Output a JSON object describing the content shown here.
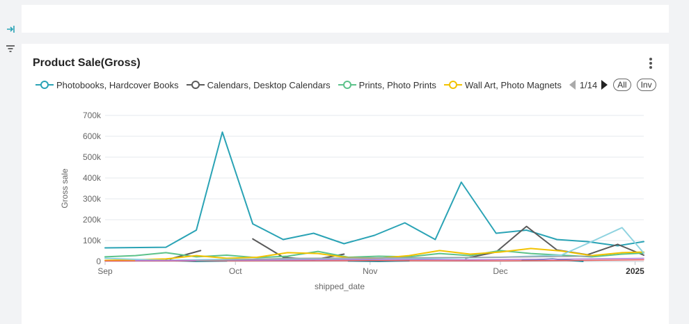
{
  "sidebar": {
    "icons": [
      "collapse-right-icon",
      "filter-icon"
    ]
  },
  "card": {
    "title": "Product Sale(Gross)",
    "more_icon": "more-vertical-icon"
  },
  "legend": {
    "items": [
      {
        "label": "Photobooks, Hardcover Books",
        "color": "#2aa3b5"
      },
      {
        "label": "Calendars, Desktop Calendars",
        "color": "#5a5a5a"
      },
      {
        "label": "Prints, Photo Prints",
        "color": "#5cc28a"
      },
      {
        "label": "Wall Art, Photo Magnets",
        "color": "#f2c200"
      }
    ],
    "page": "1/14",
    "all_label": "All",
    "inv_label": "Inv"
  },
  "chart_data": {
    "type": "line",
    "xlabel": "shipped_date",
    "ylabel": "Gross sale",
    "ylim": [
      0,
      700000
    ],
    "y_ticks": [
      "0",
      "100k",
      "200k",
      "300k",
      "400k",
      "500k",
      "600k",
      "700k"
    ],
    "y_tick_values": [
      0,
      100000,
      200000,
      300000,
      400000,
      500000,
      600000,
      700000
    ],
    "x_ticks": [
      {
        "label": "Sep",
        "date": "2024-09-01",
        "bold": false
      },
      {
        "label": "Oct",
        "date": "2024-10-01",
        "bold": false
      },
      {
        "label": "Nov",
        "date": "2024-11-01",
        "bold": false
      },
      {
        "label": "Dec",
        "date": "2024-12-01",
        "bold": false
      },
      {
        "label": "2025",
        "date": "2025-01-01",
        "bold": true
      }
    ],
    "xlim": [
      "2024-09-01",
      "2025-01-03"
    ],
    "grid": true,
    "series": [
      {
        "name": "Photobooks, Hardcover Books",
        "color": "#2aa3b5",
        "width": 2,
        "points": [
          [
            "2024-09-01",
            65000
          ],
          [
            "2024-09-15",
            68000
          ],
          [
            "2024-09-22",
            150000
          ],
          [
            "2024-09-28",
            620000
          ],
          [
            "2024-10-05",
            180000
          ],
          [
            "2024-10-12",
            105000
          ],
          [
            "2024-10-19",
            135000
          ],
          [
            "2024-10-26",
            85000
          ],
          [
            "2024-11-02",
            125000
          ],
          [
            "2024-11-09",
            185000
          ],
          [
            "2024-11-16",
            105000
          ],
          [
            "2024-11-22",
            380000
          ],
          [
            "2024-11-30",
            135000
          ],
          [
            "2024-12-07",
            150000
          ],
          [
            "2024-12-14",
            105000
          ],
          [
            "2024-12-21",
            95000
          ],
          [
            "2024-12-28",
            75000
          ],
          [
            "2025-01-03",
            95000
          ]
        ]
      },
      {
        "name": "Calendars, Desktop Calendars",
        "color": "#5a5a5a",
        "width": 2,
        "segments": [
          [
            [
              "2024-09-16",
              12000
            ],
            [
              "2024-09-23",
              52000
            ]
          ],
          [
            [
              "2024-10-05",
              108000
            ],
            [
              "2024-10-12",
              20000
            ],
            [
              "2024-10-19",
              8000
            ],
            [
              "2024-10-26",
              35000
            ]
          ],
          [
            [
              "2024-11-23",
              15000
            ],
            [
              "2024-11-30",
              45000
            ],
            [
              "2024-12-07",
              168000
            ],
            [
              "2024-12-14",
              55000
            ],
            [
              "2024-12-21",
              32000
            ],
            [
              "2024-12-28",
              82000
            ],
            [
              "2025-01-03",
              30000
            ]
          ]
        ]
      },
      {
        "name": "Prints, Photo Prints",
        "color": "#5cc28a",
        "width": 2,
        "points": [
          [
            "2024-09-01",
            22000
          ],
          [
            "2024-09-08",
            28000
          ],
          [
            "2024-09-15",
            42000
          ],
          [
            "2024-09-22",
            22000
          ],
          [
            "2024-09-29",
            30000
          ],
          [
            "2024-10-06",
            18000
          ],
          [
            "2024-10-13",
            25000
          ],
          [
            "2024-10-20",
            48000
          ],
          [
            "2024-10-27",
            20000
          ],
          [
            "2024-11-03",
            25000
          ],
          [
            "2024-11-10",
            22000
          ],
          [
            "2024-11-17",
            38000
          ],
          [
            "2024-11-24",
            28000
          ],
          [
            "2024-12-01",
            52000
          ],
          [
            "2024-12-08",
            38000
          ],
          [
            "2024-12-15",
            30000
          ],
          [
            "2024-12-22",
            22000
          ],
          [
            "2024-12-29",
            35000
          ],
          [
            "2025-01-03",
            40000
          ]
        ]
      },
      {
        "name": "Wall Art, Photo Magnets",
        "color": "#f2c200",
        "width": 2,
        "points": [
          [
            "2024-09-01",
            5000
          ],
          [
            "2024-09-08",
            8000
          ],
          [
            "2024-09-15",
            12000
          ],
          [
            "2024-09-22",
            28000
          ],
          [
            "2024-09-29",
            15000
          ],
          [
            "2024-10-06",
            20000
          ],
          [
            "2024-10-13",
            42000
          ],
          [
            "2024-10-20",
            38000
          ],
          [
            "2024-10-27",
            18000
          ],
          [
            "2024-11-03",
            15000
          ],
          [
            "2024-11-10",
            28000
          ],
          [
            "2024-11-17",
            52000
          ],
          [
            "2024-11-24",
            35000
          ],
          [
            "2024-12-01",
            45000
          ],
          [
            "2024-12-08",
            62000
          ],
          [
            "2024-12-15",
            50000
          ],
          [
            "2024-12-22",
            28000
          ],
          [
            "2024-12-29",
            42000
          ],
          [
            "2025-01-03",
            45000
          ]
        ]
      },
      {
        "color": "#8fd3e0",
        "width": 2,
        "points": [
          [
            "2024-09-01",
            15000
          ],
          [
            "2024-09-08",
            10000
          ],
          [
            "2024-09-15",
            5000
          ],
          [
            "2024-09-22",
            8000
          ],
          [
            "2024-10-01",
            10000
          ],
          [
            "2024-10-15",
            12000
          ],
          [
            "2024-11-01",
            10000
          ],
          [
            "2024-11-15",
            15000
          ],
          [
            "2024-12-01",
            20000
          ],
          [
            "2024-12-15",
            30000
          ],
          [
            "2024-12-22",
            95000
          ],
          [
            "2024-12-29",
            162000
          ],
          [
            "2025-01-03",
            40000
          ]
        ]
      },
      {
        "color": "#1a8fa0",
        "width": 2,
        "segments": [
          [
            [
              "2024-09-15",
              5000
            ],
            [
              "2024-09-22",
              0
            ],
            [
              "2024-09-29",
              2000
            ]
          ],
          [
            [
              "2024-10-27",
              2000
            ],
            [
              "2024-11-03",
              0
            ],
            [
              "2024-11-10",
              3000
            ]
          ],
          [
            [
              "2024-12-06",
              5000
            ],
            [
              "2024-12-13",
              12000
            ],
            [
              "2024-12-20",
              0
            ]
          ]
        ]
      },
      {
        "color": "#e85a5a",
        "width": 1.5,
        "points": [
          [
            "2024-09-01",
            2000
          ],
          [
            "2024-10-01",
            3000
          ],
          [
            "2024-11-01",
            4000
          ],
          [
            "2024-12-01",
            3000
          ],
          [
            "2024-12-20",
            5000
          ],
          [
            "2025-01-03",
            8000
          ]
        ]
      },
      {
        "color": "#b07ad8",
        "width": 1.5,
        "points": [
          [
            "2024-09-08",
            4000
          ],
          [
            "2024-10-06",
            6000
          ],
          [
            "2024-11-03",
            10000
          ],
          [
            "2024-11-24",
            8000
          ],
          [
            "2024-12-22",
            12000
          ],
          [
            "2025-01-03",
            15000
          ]
        ]
      },
      {
        "color": "#9aa0a6",
        "width": 1.5,
        "points": [
          [
            "2024-09-22",
            3000
          ],
          [
            "2024-10-13",
            15000
          ],
          [
            "2024-11-10",
            18000
          ],
          [
            "2024-12-01",
            20000
          ],
          [
            "2024-12-22",
            25000
          ]
        ]
      }
    ]
  }
}
